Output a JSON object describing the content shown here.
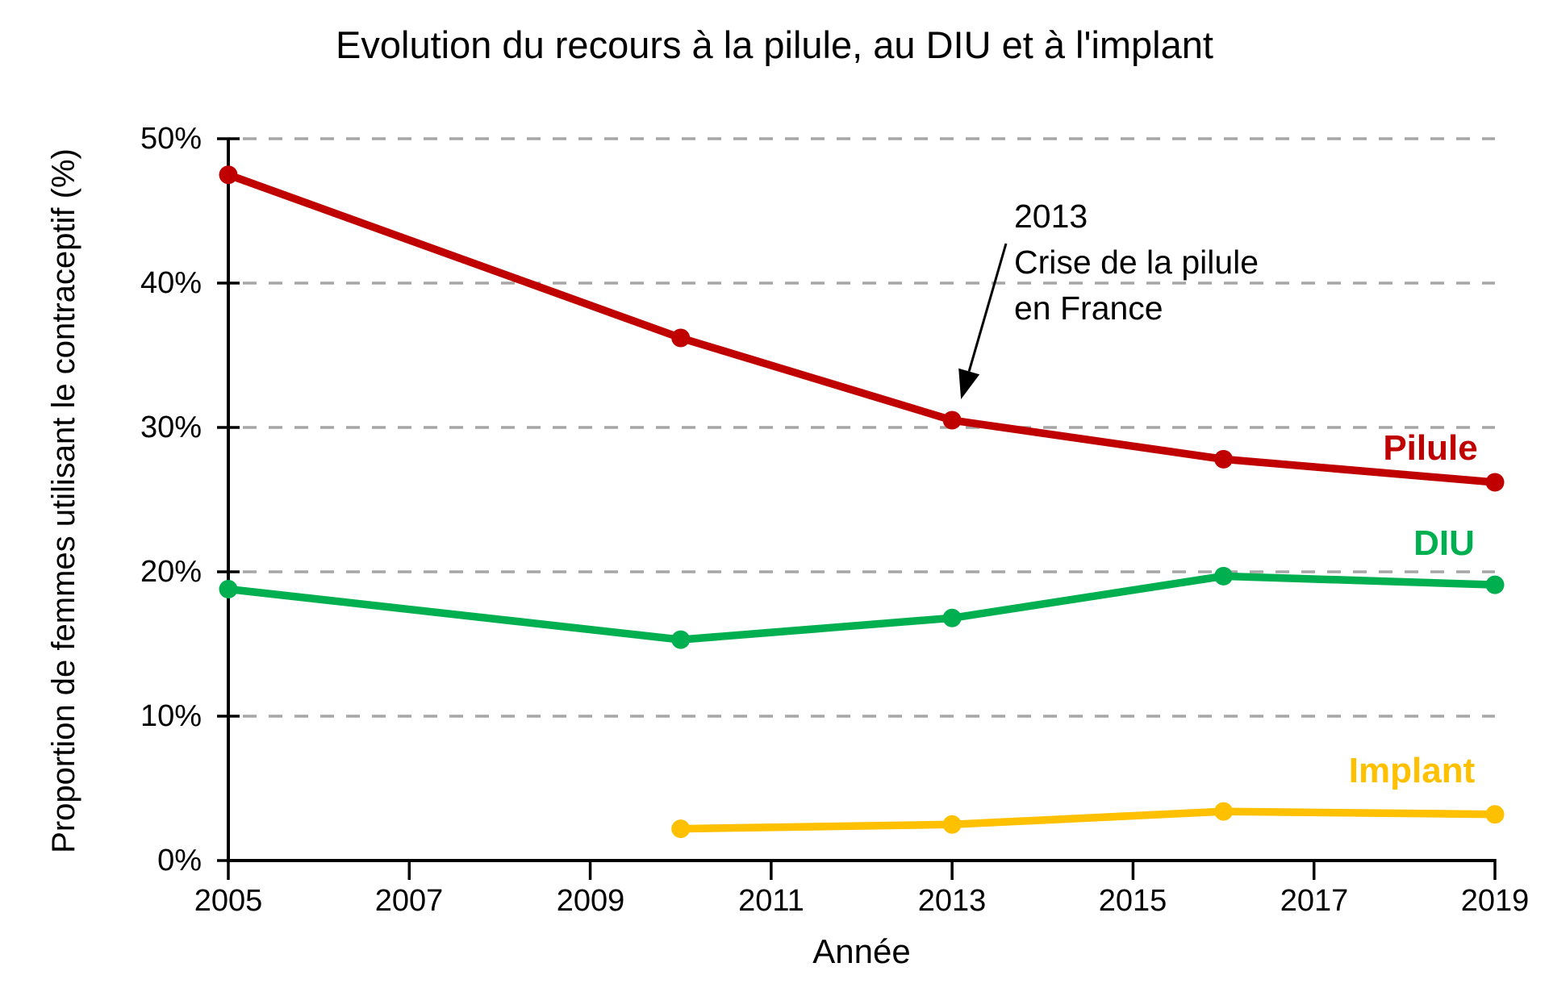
{
  "title": "Evolution du recours à la pilule, au DIU et à l'implant",
  "chart_data": {
    "type": "line",
    "title": "Evolution du recours à la pilule, au DIU et à l'implant",
    "xlabel": "Année",
    "ylabel": "Proportion de femmes utilisant le contraceptif (%)",
    "xlim": [
      2005,
      2019
    ],
    "ylim": [
      0,
      50
    ],
    "unit": "%",
    "x_ticks": [
      "2005",
      "2007",
      "2009",
      "2011",
      "2013",
      "2015",
      "2017",
      "2019"
    ],
    "y_ticks": [
      {
        "value": 0,
        "label": "0%"
      },
      {
        "value": 10,
        "label": "10%"
      },
      {
        "value": 20,
        "label": "20%"
      },
      {
        "value": 30,
        "label": "30%"
      },
      {
        "value": 40,
        "label": "40%"
      },
      {
        "value": 50,
        "label": "50%"
      }
    ],
    "grid": {
      "horizontal": true,
      "style": "dashed",
      "color": "#A6A6A6"
    },
    "legend_position": "end-of-line-labels",
    "series": [
      {
        "name": "Pilule",
        "color": "#C00000",
        "points": [
          {
            "x": 2005,
            "y": 47.5
          },
          {
            "x": 2010,
            "y": 36.2
          },
          {
            "x": 2013,
            "y": 30.5
          },
          {
            "x": 2016,
            "y": 27.8
          },
          {
            "x": 2019,
            "y": 26.2
          }
        ]
      },
      {
        "name": "DIU",
        "color": "#00B050",
        "points": [
          {
            "x": 2005,
            "y": 18.8
          },
          {
            "x": 2010,
            "y": 15.3
          },
          {
            "x": 2013,
            "y": 16.8
          },
          {
            "x": 2016,
            "y": 19.7
          },
          {
            "x": 2019,
            "y": 19.1
          }
        ]
      },
      {
        "name": "Implant",
        "color": "#FFC000",
        "points": [
          {
            "x": 2010,
            "y": 2.2
          },
          {
            "x": 2013,
            "y": 2.5
          },
          {
            "x": 2016,
            "y": 3.4
          },
          {
            "x": 2019,
            "y": 3.2
          }
        ]
      }
    ],
    "annotation": {
      "lines": [
        "2013",
        "Crise de la pilule",
        "en France"
      ],
      "arrow_points_to": {
        "series": "Pilule",
        "x": 2013,
        "y": 30.5
      }
    }
  }
}
